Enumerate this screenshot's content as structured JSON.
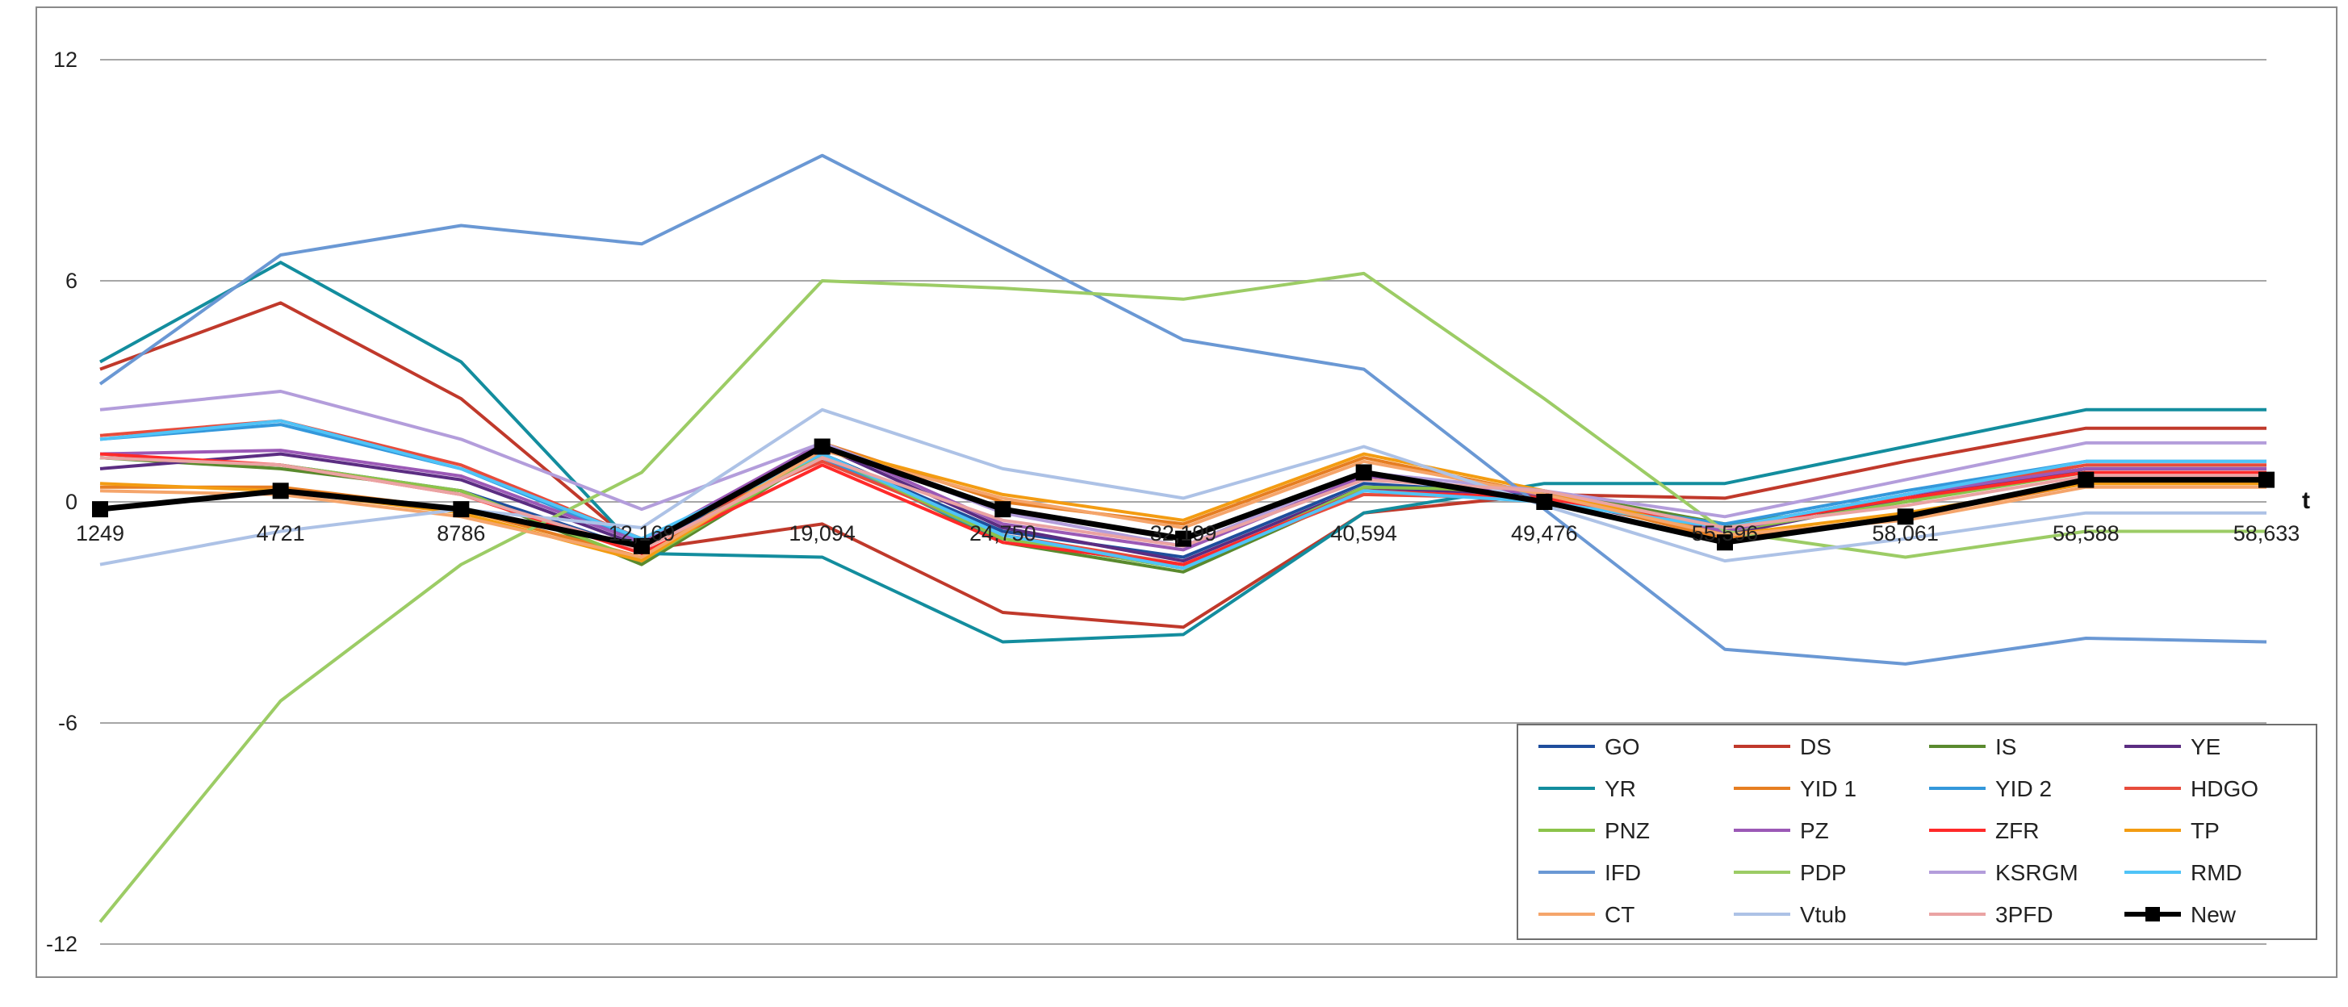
{
  "chart_data": {
    "type": "line",
    "title": "",
    "xlabel": "t",
    "ylabel": "",
    "ylim": [
      -12,
      12
    ],
    "yticks": [
      -12,
      -6,
      0,
      6,
      12
    ],
    "ytick_labels": [
      "-12",
      "-6",
      "0",
      "6",
      "12"
    ],
    "grid": true,
    "legend_position": "bottom-right",
    "categories": [
      "1249",
      "4721",
      "8786",
      "12,169",
      "19,094",
      "24,750",
      "32,199",
      "40,594",
      "49,476",
      "55,596",
      "58,061",
      "58,588",
      "58,633"
    ],
    "series": [
      {
        "name": "GO",
        "color": "#1f4e9c",
        "values": [
          1.2,
          1.0,
          0.3,
          -1.3,
          1.3,
          -0.8,
          -1.5,
          0.5,
          0.2,
          -0.7,
          0.2,
          0.9,
          0.9
        ]
      },
      {
        "name": "DS",
        "color": "#c0392b",
        "values": [
          3.6,
          5.4,
          2.8,
          -1.3,
          -0.6,
          -3.0,
          -3.4,
          -0.3,
          0.2,
          0.1,
          1.1,
          2.0,
          2.0
        ]
      },
      {
        "name": "IS",
        "color": "#5a8a2e",
        "values": [
          1.2,
          0.9,
          0.3,
          -1.7,
          1.3,
          -1.1,
          -1.9,
          0.3,
          0.3,
          -0.6,
          0.0,
          0.9,
          0.9
        ]
      },
      {
        "name": "YE",
        "color": "#5b2d82",
        "values": [
          0.9,
          1.3,
          0.6,
          -1.2,
          1.5,
          -0.7,
          -1.6,
          0.4,
          0.1,
          -0.9,
          0.1,
          0.9,
          0.9
        ]
      },
      {
        "name": "YR",
        "color": "#138d9e",
        "values": [
          3.8,
          6.5,
          3.8,
          -1.4,
          -1.5,
          -3.8,
          -3.6,
          -0.3,
          0.5,
          0.5,
          1.5,
          2.5,
          2.5
        ]
      },
      {
        "name": "YID 1",
        "color": "#e67e22",
        "values": [
          0.4,
          0.4,
          -0.2,
          -1.5,
          1.6,
          0.0,
          -0.6,
          1.2,
          0.2,
          -1.0,
          -0.4,
          0.5,
          0.5
        ]
      },
      {
        "name": "YID 2",
        "color": "#3498db",
        "values": [
          1.7,
          2.1,
          0.9,
          -1.1,
          1.2,
          -1.0,
          -1.8,
          0.3,
          0.1,
          -0.6,
          0.3,
          1.1,
          1.1
        ]
      },
      {
        "name": "HDGO",
        "color": "#e74c3c",
        "values": [
          1.8,
          2.2,
          1.0,
          -1.0,
          1.1,
          -0.9,
          -1.7,
          0.2,
          0.1,
          -0.8,
          0.2,
          1.0,
          1.0
        ]
      },
      {
        "name": "PNZ",
        "color": "#8bc34a",
        "values": [
          1.2,
          1.0,
          0.3,
          -1.6,
          1.3,
          -1.0,
          -1.8,
          0.4,
          0.3,
          -0.8,
          0.0,
          0.8,
          0.8
        ]
      },
      {
        "name": "PZ",
        "color": "#9b59b6",
        "values": [
          1.3,
          1.4,
          0.7,
          -1.1,
          1.6,
          -0.6,
          -1.3,
          0.7,
          0.2,
          -0.8,
          0.2,
          0.9,
          0.9
        ]
      },
      {
        "name": "ZFR",
        "color": "#ff2a2a",
        "values": [
          1.3,
          1.0,
          0.2,
          -1.4,
          1.0,
          -1.1,
          -1.7,
          0.3,
          0.1,
          -0.7,
          0.1,
          0.8,
          0.8
        ]
      },
      {
        "name": "TP",
        "color": "#f39c12",
        "values": [
          0.5,
          0.3,
          -0.3,
          -1.6,
          1.5,
          0.2,
          -0.5,
          1.3,
          0.3,
          -0.9,
          -0.3,
          0.5,
          0.5
        ]
      },
      {
        "name": "IFD",
        "color": "#6a98d4",
        "values": [
          3.2,
          6.7,
          7.5,
          7.0,
          9.4,
          6.9,
          4.4,
          3.6,
          -0.2,
          -4.0,
          -4.4,
          -3.7,
          -3.8
        ]
      },
      {
        "name": "PDP",
        "color": "#9ccc65",
        "values": [
          -11.4,
          -5.4,
          -1.7,
          0.8,
          6.0,
          5.8,
          5.5,
          6.2,
          2.8,
          -0.8,
          -1.5,
          -0.8,
          -0.8
        ]
      },
      {
        "name": "KSRGM",
        "color": "#b39ddb",
        "values": [
          2.5,
          3.0,
          1.7,
          -0.2,
          1.6,
          -0.3,
          -1.2,
          0.8,
          0.3,
          -0.4,
          0.6,
          1.6,
          1.6
        ]
      },
      {
        "name": "RMD",
        "color": "#4fc3f7",
        "values": [
          1.7,
          2.2,
          0.9,
          -1.0,
          1.3,
          -0.9,
          -1.8,
          0.3,
          0.0,
          -0.7,
          0.2,
          1.1,
          1.1
        ]
      },
      {
        "name": "CT",
        "color": "#f5a56b",
        "values": [
          0.3,
          0.2,
          -0.4,
          -1.5,
          1.4,
          0.1,
          -0.7,
          1.1,
          0.2,
          -0.9,
          -0.5,
          0.4,
          0.4
        ]
      },
      {
        "name": "Vtub",
        "color": "#adc2e6",
        "values": [
          -1.7,
          -0.8,
          -0.2,
          -0.7,
          2.5,
          0.9,
          0.1,
          1.5,
          -0.1,
          -1.6,
          -1.0,
          -0.3,
          -0.3
        ]
      },
      {
        "name": "3PFD",
        "color": "#eaa3a3",
        "values": [
          1.2,
          1.0,
          0.2,
          -1.3,
          1.2,
          -0.5,
          -1.2,
          0.6,
          0.3,
          -0.7,
          -0.1,
          0.7,
          0.7
        ]
      },
      {
        "name": "New",
        "color": "#000000",
        "values": [
          -0.2,
          0.3,
          -0.2,
          -1.2,
          1.5,
          -0.2,
          -1.0,
          0.8,
          0.0,
          -1.1,
          -0.4,
          0.6,
          0.6
        ],
        "marker": "square"
      }
    ]
  }
}
